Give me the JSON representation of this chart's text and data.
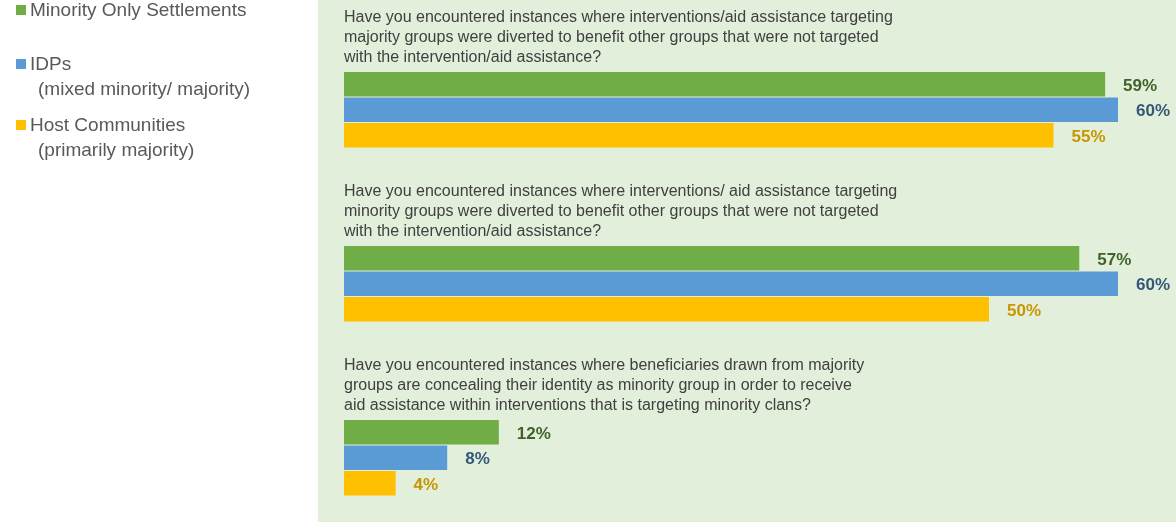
{
  "chart_data": {
    "type": "bar",
    "orientation": "horizontal",
    "categories": [
      "Have you encountered instances where interventions/aid assistance targeting majority groups were diverted to benefit other groups that were not targeted with the intervention/aid assistance?",
      "Have you encountered instances where interventions/ aid assistance targeting minority groups were diverted to benefit other groups that were not targeted with the intervention/aid assistance?",
      "Have you encountered instances where beneficiaries drawn from majority groups are concealing their identity as minority group in order to receive aid assistance within interventions that is targeting minority clans?"
    ],
    "series": [
      {
        "name": "Minority Only Settlements",
        "color": "#70ad47",
        "values": [
          59,
          57,
          12
        ],
        "value_labels": [
          "59%",
          "57%",
          "12%"
        ]
      },
      {
        "name": "IDPs (mixed minority/ majority)",
        "color": "#5b9bd5",
        "values": [
          60,
          60,
          8
        ],
        "value_labels": [
          "60%",
          "60%",
          "8%"
        ]
      },
      {
        "name": "Host Communities (primarily majority)",
        "color": "#ffc000",
        "values": [
          55,
          50,
          4
        ],
        "value_labels": [
          "55%",
          "50%",
          "4%"
        ]
      }
    ],
    "legend": "left"
  }
}
